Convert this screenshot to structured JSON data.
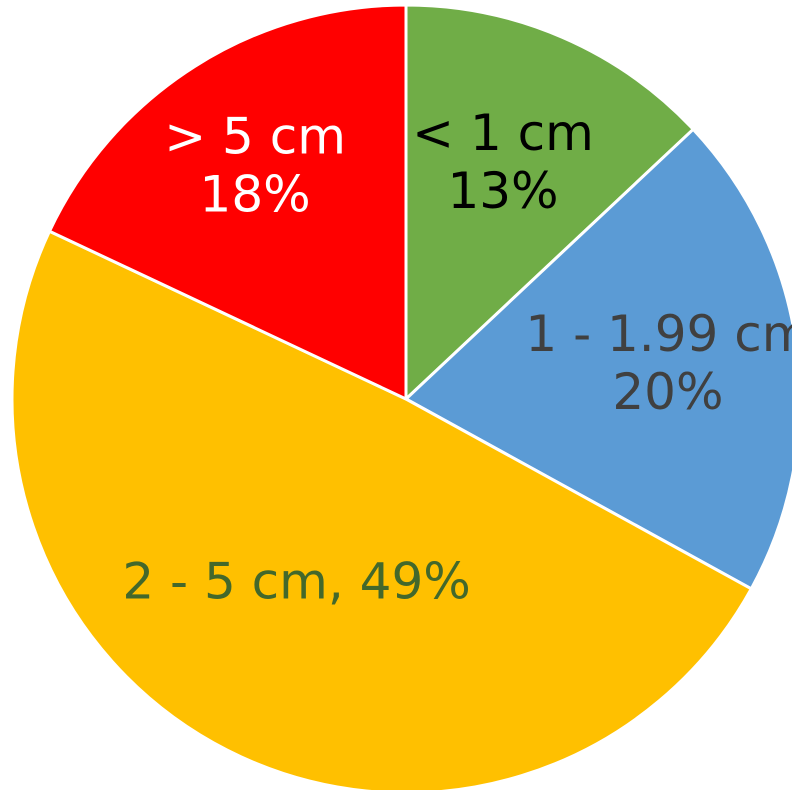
{
  "chart_data": {
    "type": "pie",
    "title": "",
    "start_angle_deg": 0,
    "direction": "clockwise",
    "slices": [
      {
        "category": "< 1 cm",
        "value": 13,
        "percent_label": "13%",
        "color": "#70AD47",
        "label_color": "#000000",
        "label_style": "stacked"
      },
      {
        "category": "1 - 1.99 cm",
        "value": 20,
        "percent_label": "20%",
        "color": "#5B9BD5",
        "label_color": "#404040",
        "label_style": "stacked"
      },
      {
        "category": "2 - 5 cm",
        "value": 49,
        "percent_label": "49%",
        "color": "#FFC000",
        "label_color": "#43682B",
        "label_style": "inline"
      },
      {
        "category": "> 5 cm",
        "value": 18,
        "percent_label": "18%",
        "color": "#FF0000",
        "label_color": "#FFFFFF",
        "label_style": "stacked"
      }
    ],
    "legend": "none"
  }
}
